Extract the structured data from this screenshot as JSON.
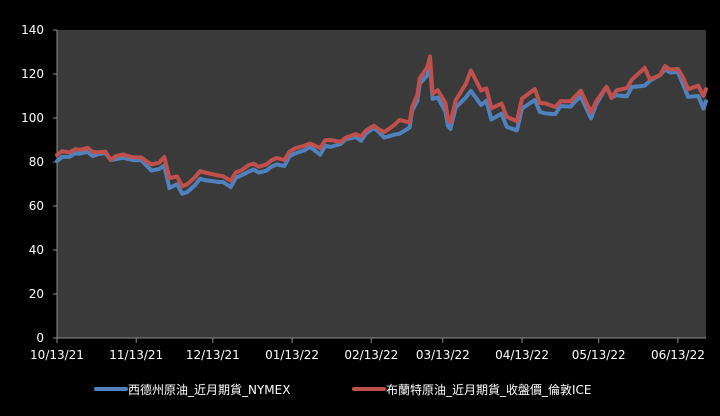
{
  "chart_data": {
    "type": "line",
    "title": "",
    "xlabel": "",
    "ylabel": "",
    "ylim": [
      0,
      140
    ],
    "yticks": [
      0,
      20,
      40,
      60,
      80,
      100,
      120,
      140
    ],
    "x_tick_labels": [
      "10/13/21",
      "11/13/21",
      "12/13/21",
      "01/13/22",
      "02/13/22",
      "03/13/22",
      "04/13/22",
      "05/13/22",
      "06/13/22"
    ],
    "x_tick_dates": [
      "2021-10-13",
      "2021-11-13",
      "2021-12-13",
      "2022-01-13",
      "2022-02-13",
      "2022-03-13",
      "2022-04-13",
      "2022-05-13",
      "2022-06-13"
    ],
    "xlim": [
      "2021-10-13",
      "2022-06-24"
    ],
    "grid": false,
    "legend_position": "bottom",
    "plot_background": "#3a3a3a",
    "series": [
      {
        "name": "西德州原油_近月期貨_NYMEX",
        "color": "#4f81bd",
        "points": [
          [
            "2021-10-13",
            80.4
          ],
          [
            "2021-10-15",
            82.3
          ],
          [
            "2021-10-18",
            82.4
          ],
          [
            "2021-10-20",
            83.9
          ],
          [
            "2021-10-22",
            83.8
          ],
          [
            "2021-10-25",
            84.6
          ],
          [
            "2021-10-27",
            82.7
          ],
          [
            "2021-10-29",
            83.6
          ],
          [
            "2021-11-01",
            84.1
          ],
          [
            "2021-11-03",
            80.9
          ],
          [
            "2021-11-05",
            81.3
          ],
          [
            "2021-11-08",
            81.9
          ],
          [
            "2021-11-10",
            81.3
          ],
          [
            "2021-11-12",
            80.8
          ],
          [
            "2021-11-15",
            80.9
          ],
          [
            "2021-11-17",
            78.4
          ],
          [
            "2021-11-19",
            76.1
          ],
          [
            "2021-11-22",
            76.8
          ],
          [
            "2021-11-24",
            78.4
          ],
          [
            "2021-11-26",
            68.2
          ],
          [
            "2021-11-29",
            69.9
          ],
          [
            "2021-12-01",
            65.6
          ],
          [
            "2021-12-03",
            66.3
          ],
          [
            "2021-12-06",
            69.5
          ],
          [
            "2021-12-08",
            72.4
          ],
          [
            "2021-12-10",
            71.7
          ],
          [
            "2021-12-13",
            71.3
          ],
          [
            "2021-12-15",
            70.9
          ],
          [
            "2021-12-17",
            70.9
          ],
          [
            "2021-12-20",
            68.6
          ],
          [
            "2021-12-22",
            72.8
          ],
          [
            "2021-12-24",
            73.8
          ],
          [
            "2021-12-27",
            75.6
          ],
          [
            "2021-12-29",
            76.6
          ],
          [
            "2021-12-31",
            75.2
          ],
          [
            "2022-01-03",
            76.1
          ],
          [
            "2022-01-05",
            77.9
          ],
          [
            "2022-01-07",
            78.9
          ],
          [
            "2022-01-10",
            78.2
          ],
          [
            "2022-01-12",
            82.6
          ],
          [
            "2022-01-14",
            83.8
          ],
          [
            "2022-01-18",
            85.4
          ],
          [
            "2022-01-20",
            86.9
          ],
          [
            "2022-01-24",
            83.3
          ],
          [
            "2022-01-26",
            87.4
          ],
          [
            "2022-01-28",
            86.8
          ],
          [
            "2022-02-01",
            88.2
          ],
          [
            "2022-02-03",
            90.3
          ],
          [
            "2022-02-07",
            91.3
          ],
          [
            "2022-02-09",
            89.7
          ],
          [
            "2022-02-11",
            93.1
          ],
          [
            "2022-02-14",
            95.5
          ],
          [
            "2022-02-16",
            93.7
          ],
          [
            "2022-02-18",
            91.1
          ],
          [
            "2022-02-22",
            92.4
          ],
          [
            "2022-02-24",
            92.8
          ],
          [
            "2022-02-28",
            95.7
          ],
          [
            "2022-03-01",
            103.4
          ],
          [
            "2022-03-03",
            107.7
          ],
          [
            "2022-03-04",
            115.7
          ],
          [
            "2022-03-07",
            119.4
          ],
          [
            "2022-03-08",
            123.7
          ],
          [
            "2022-03-09",
            108.7
          ],
          [
            "2022-03-11",
            109.3
          ],
          [
            "2022-03-14",
            103.0
          ],
          [
            "2022-03-15",
            96.4
          ],
          [
            "2022-03-16",
            95.0
          ],
          [
            "2022-03-18",
            104.7
          ],
          [
            "2022-03-22",
            109.3
          ],
          [
            "2022-03-24",
            112.3
          ],
          [
            "2022-03-28",
            105.9
          ],
          [
            "2022-03-30",
            107.8
          ],
          [
            "2022-04-01",
            99.3
          ],
          [
            "2022-04-05",
            102.0
          ],
          [
            "2022-04-07",
            96.0
          ],
          [
            "2022-04-11",
            94.3
          ],
          [
            "2022-04-13",
            104.3
          ],
          [
            "2022-04-18",
            108.2
          ],
          [
            "2022-04-20",
            102.8
          ],
          [
            "2022-04-22",
            102.1
          ],
          [
            "2022-04-26",
            101.7
          ],
          [
            "2022-04-28",
            105.4
          ],
          [
            "2022-05-02",
            105.2
          ],
          [
            "2022-05-04",
            107.8
          ],
          [
            "2022-05-06",
            109.8
          ],
          [
            "2022-05-10",
            99.8
          ],
          [
            "2022-05-12",
            106.1
          ],
          [
            "2022-05-16",
            114.2
          ],
          [
            "2022-05-18",
            109.6
          ],
          [
            "2022-05-20",
            110.3
          ],
          [
            "2022-05-24",
            109.8
          ],
          [
            "2022-05-26",
            114.1
          ],
          [
            "2022-05-31",
            114.7
          ],
          [
            "2022-06-02",
            116.9
          ],
          [
            "2022-06-06",
            119.5
          ],
          [
            "2022-06-08",
            122.1
          ],
          [
            "2022-06-10",
            120.7
          ],
          [
            "2022-06-13",
            120.9
          ],
          [
            "2022-06-15",
            115.3
          ],
          [
            "2022-06-17",
            109.6
          ],
          [
            "2022-06-21",
            110.0
          ],
          [
            "2022-06-23",
            104.3
          ],
          [
            "2022-06-24",
            107.6
          ]
        ]
      },
      {
        "name": "布蘭特原油_近月期貨_收盤價_倫敦ICE",
        "color": "#c0504d",
        "points": [
          [
            "2021-10-13",
            83.2
          ],
          [
            "2021-10-15",
            84.9
          ],
          [
            "2021-10-18",
            84.3
          ],
          [
            "2021-10-20",
            85.8
          ],
          [
            "2021-10-22",
            85.5
          ],
          [
            "2021-10-25",
            86.4
          ],
          [
            "2021-10-27",
            84.6
          ],
          [
            "2021-10-29",
            84.4
          ],
          [
            "2021-11-01",
            84.7
          ],
          [
            "2021-11-03",
            81.0
          ],
          [
            "2021-11-05",
            82.7
          ],
          [
            "2021-11-08",
            83.4
          ],
          [
            "2021-11-10",
            82.6
          ],
          [
            "2021-11-12",
            82.2
          ],
          [
            "2021-11-15",
            82.1
          ],
          [
            "2021-11-17",
            80.3
          ],
          [
            "2021-11-19",
            78.9
          ],
          [
            "2021-11-22",
            79.7
          ],
          [
            "2021-11-24",
            82.3
          ],
          [
            "2021-11-26",
            72.7
          ],
          [
            "2021-11-29",
            73.4
          ],
          [
            "2021-12-01",
            68.9
          ],
          [
            "2021-12-03",
            69.9
          ],
          [
            "2021-12-06",
            73.1
          ],
          [
            "2021-12-08",
            75.8
          ],
          [
            "2021-12-10",
            75.2
          ],
          [
            "2021-12-13",
            74.4
          ],
          [
            "2021-12-15",
            73.9
          ],
          [
            "2021-12-17",
            73.5
          ],
          [
            "2021-12-20",
            71.5
          ],
          [
            "2021-12-22",
            75.3
          ],
          [
            "2021-12-24",
            76.1
          ],
          [
            "2021-12-27",
            78.6
          ],
          [
            "2021-12-29",
            79.2
          ],
          [
            "2021-12-31",
            77.8
          ],
          [
            "2022-01-03",
            78.9
          ],
          [
            "2022-01-05",
            80.8
          ],
          [
            "2022-01-07",
            81.8
          ],
          [
            "2022-01-10",
            80.9
          ],
          [
            "2022-01-12",
            84.7
          ],
          [
            "2022-01-14",
            86.1
          ],
          [
            "2022-01-18",
            87.5
          ],
          [
            "2022-01-20",
            88.4
          ],
          [
            "2022-01-24",
            86.3
          ],
          [
            "2022-01-26",
            89.9
          ],
          [
            "2022-01-28",
            90.0
          ],
          [
            "2022-02-01",
            89.2
          ],
          [
            "2022-02-03",
            91.1
          ],
          [
            "2022-02-07",
            92.7
          ],
          [
            "2022-02-09",
            91.6
          ],
          [
            "2022-02-11",
            94.4
          ],
          [
            "2022-02-14",
            96.5
          ],
          [
            "2022-02-16",
            94.8
          ],
          [
            "2022-02-18",
            93.5
          ],
          [
            "2022-02-22",
            96.8
          ],
          [
            "2022-02-24",
            99.1
          ],
          [
            "2022-02-28",
            98.0
          ],
          [
            "2022-03-01",
            105.0
          ],
          [
            "2022-03-03",
            110.5
          ],
          [
            "2022-03-04",
            118.1
          ],
          [
            "2022-03-07",
            123.2
          ],
          [
            "2022-03-08",
            128.0
          ],
          [
            "2022-03-09",
            111.1
          ],
          [
            "2022-03-11",
            112.7
          ],
          [
            "2022-03-14",
            106.9
          ],
          [
            "2022-03-15",
            99.9
          ],
          [
            "2022-03-16",
            98.0
          ],
          [
            "2022-03-18",
            107.9
          ],
          [
            "2022-03-22",
            115.5
          ],
          [
            "2022-03-24",
            121.6
          ],
          [
            "2022-03-28",
            112.5
          ],
          [
            "2022-03-30",
            113.5
          ],
          [
            "2022-04-01",
            104.4
          ],
          [
            "2022-04-05",
            106.6
          ],
          [
            "2022-04-07",
            100.6
          ],
          [
            "2022-04-11",
            98.5
          ],
          [
            "2022-04-13",
            108.8
          ],
          [
            "2022-04-18",
            113.2
          ],
          [
            "2022-04-20",
            106.8
          ],
          [
            "2022-04-22",
            106.7
          ],
          [
            "2022-04-26",
            105.0
          ],
          [
            "2022-04-28",
            107.6
          ],
          [
            "2022-05-02",
            107.6
          ],
          [
            "2022-05-04",
            110.1
          ],
          [
            "2022-05-06",
            112.4
          ],
          [
            "2022-05-10",
            102.5
          ],
          [
            "2022-05-12",
            107.5
          ],
          [
            "2022-05-16",
            114.2
          ],
          [
            "2022-05-18",
            109.1
          ],
          [
            "2022-05-20",
            112.6
          ],
          [
            "2022-05-24",
            113.6
          ],
          [
            "2022-05-26",
            117.4
          ],
          [
            "2022-05-31",
            122.8
          ],
          [
            "2022-06-02",
            117.6
          ],
          [
            "2022-06-06",
            119.5
          ],
          [
            "2022-06-08",
            123.6
          ],
          [
            "2022-06-10",
            122.0
          ],
          [
            "2022-06-13",
            122.3
          ],
          [
            "2022-06-15",
            118.5
          ],
          [
            "2022-06-17",
            113.1
          ],
          [
            "2022-06-21",
            114.7
          ],
          [
            "2022-06-23",
            110.1
          ],
          [
            "2022-06-24",
            113.1
          ]
        ]
      }
    ]
  }
}
